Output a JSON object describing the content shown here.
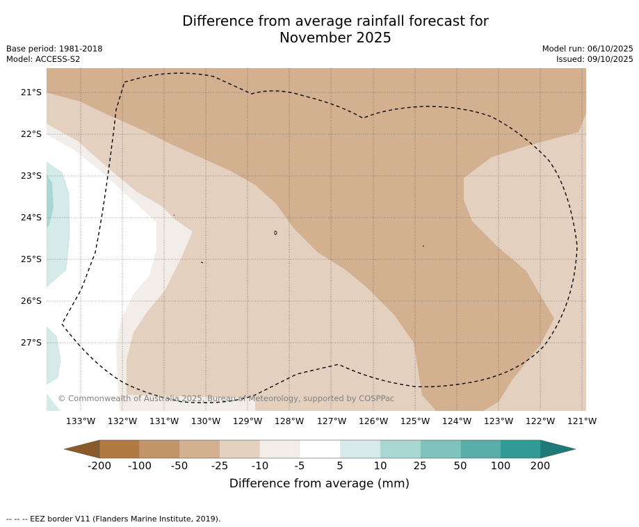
{
  "title_line1": "Difference from average rainfall forecast for",
  "title_line2": "November 2025",
  "base_period": "Base period: 1981-2018",
  "model": "Model: ACCESS-S2",
  "model_run": "Model run: 06/10/2025",
  "issued": "Issued: 09/10/2025",
  "lat_labels": [
    "21°S",
    "22°S",
    "23°S",
    "24°S",
    "25°S",
    "26°S",
    "27°S"
  ],
  "lon_labels": [
    "133°W",
    "132°W",
    "131°W",
    "130°W",
    "129°W",
    "128°W",
    "127°W",
    "126°W",
    "125°W",
    "124°W",
    "123°W",
    "122°W",
    "121°W"
  ],
  "credit": "© Commonwealth of Australia 2025, Bureau of Meteorology, supported by COSPPac",
  "colorbar": {
    "ticks": [
      "-200",
      "-100",
      "-50",
      "-25",
      "-10",
      "-5",
      "5",
      "10",
      "25",
      "50",
      "100",
      "200"
    ],
    "colors": [
      "#8a5a2a",
      "#b07a42",
      "#c39468",
      "#d2b090",
      "#e4d0bf",
      "#f2ede8",
      "#ffffff",
      "#d4ebe9",
      "#a9d7d3",
      "#80c2be",
      "#5aaeaa",
      "#319a95",
      "#1e7a78"
    ],
    "label": "Difference from average (mm)"
  },
  "footer": "--  --  -- EEZ border V11 (Flanders Marine Institute, 2019)."
}
